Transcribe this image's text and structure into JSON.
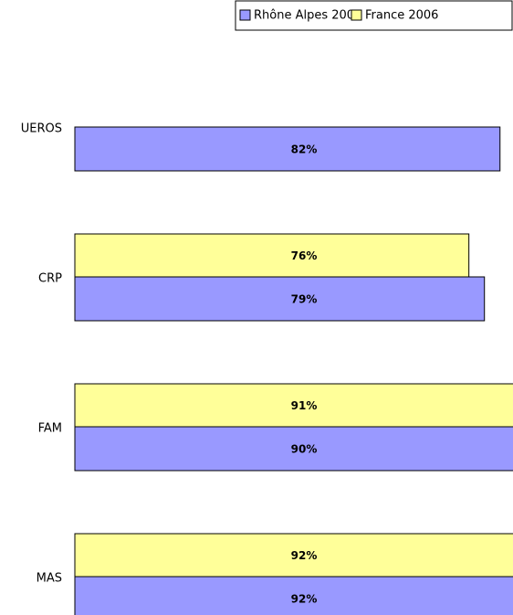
{
  "chart_data": {
    "type": "barh",
    "categories": [
      "UEROS",
      "CRP",
      "FAM",
      "MAS"
    ],
    "series": [
      {
        "name": "Rhône Alpes 2007",
        "color": "#9999ff",
        "values": [
          82,
          79,
          90,
          92
        ],
        "value_labels": [
          "82%",
          "79%",
          "90%",
          "92%"
        ]
      },
      {
        "name": "France 2006",
        "color": "#ffff99",
        "values": [
          null,
          76,
          91,
          92
        ],
        "value_labels": [
          null,
          "76%",
          "91%",
          "92%"
        ]
      }
    ],
    "xlim": [
      0,
      100
    ],
    "legend": "top-right"
  }
}
